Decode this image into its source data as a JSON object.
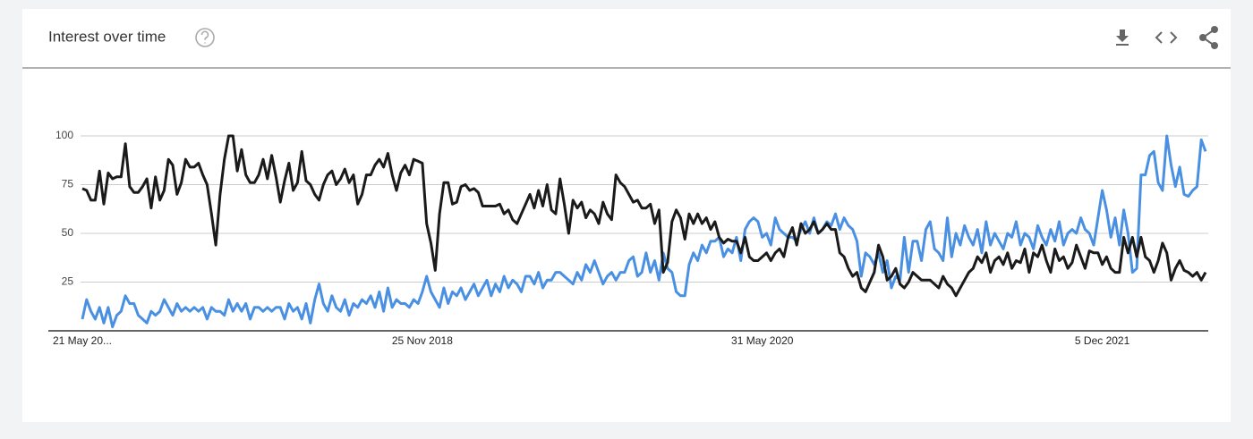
{
  "header": {
    "title": "Interest over time"
  },
  "chart_data": {
    "type": "line",
    "categories": [
      "21 May 20...",
      null,
      null,
      null,
      null,
      null,
      null,
      null,
      null,
      null,
      null,
      null,
      null,
      null,
      null,
      null,
      null,
      null,
      null,
      null,
      null,
      null,
      null,
      null,
      null,
      null,
      null,
      null,
      null,
      null,
      null,
      null,
      null,
      null,
      null,
      null,
      null,
      null,
      null,
      null,
      null,
      null,
      null,
      null,
      null,
      null,
      null,
      null,
      null,
      null,
      null,
      null,
      null,
      null,
      null,
      null,
      null,
      null,
      null,
      null,
      null,
      null,
      null,
      null,
      null,
      null,
      null,
      null,
      null,
      null,
      null,
      null,
      null,
      null,
      null,
      null,
      null,
      null,
      null,
      "25 Nov 2018",
      null,
      null,
      null,
      null,
      null,
      null,
      null,
      null,
      null,
      null,
      null,
      null,
      null,
      null,
      null,
      null,
      null,
      null,
      null,
      null,
      null,
      null,
      null,
      null,
      null,
      null,
      null,
      null,
      null,
      null,
      null,
      null,
      null,
      null,
      null,
      null,
      null,
      null,
      null,
      null,
      null,
      null,
      null,
      null,
      null,
      null,
      null,
      null,
      null,
      null,
      null,
      null,
      null,
      null,
      null,
      null,
      null,
      null,
      null,
      null,
      null,
      null,
      null,
      null,
      null,
      null,
      null,
      null,
      null,
      null,
      null,
      null,
      null,
      null,
      null,
      null,
      null,
      null,
      "31 May 2020",
      null,
      null,
      null,
      null,
      null,
      null,
      null,
      null,
      null,
      null,
      null,
      null,
      null,
      null,
      null,
      null,
      null,
      null,
      null,
      null,
      null,
      null,
      null,
      null,
      null,
      null,
      null,
      null,
      null,
      null,
      null,
      null,
      null,
      null,
      null,
      null,
      null,
      null,
      null,
      null,
      null,
      null,
      null,
      null,
      null,
      null,
      null,
      null,
      null,
      null,
      null,
      null,
      null,
      null,
      null,
      null,
      null,
      null,
      null,
      null,
      null,
      null,
      null,
      null,
      null,
      null,
      null,
      null,
      null,
      null,
      null,
      null,
      null,
      null,
      null,
      null,
      null,
      null,
      "5 Dec 2021",
      null,
      null,
      null,
      null,
      null,
      null,
      null,
      null,
      null,
      null,
      null,
      null,
      null,
      null,
      null,
      null,
      null,
      null,
      null,
      null,
      null,
      null,
      null,
      null
    ],
    "series": [
      {
        "color": "#4a90e2",
        "values": [
          6,
          16,
          10,
          6,
          12,
          4,
          12,
          2,
          8,
          10,
          18,
          14,
          14,
          8,
          6,
          4,
          10,
          8,
          10,
          16,
          12,
          8,
          14,
          10,
          12,
          10,
          12,
          10,
          12,
          6,
          12,
          10,
          10,
          8,
          16,
          10,
          14,
          10,
          14,
          6,
          12,
          12,
          10,
          12,
          10,
          12,
          12,
          6,
          14,
          10,
          12,
          6,
          14,
          4,
          16,
          24,
          14,
          10,
          18,
          12,
          10,
          16,
          8,
          14,
          12,
          16,
          14,
          18,
          12,
          20,
          10,
          22,
          12,
          16,
          14,
          14,
          12,
          16,
          14,
          20,
          28,
          20,
          16,
          12,
          22,
          14,
          20,
          18,
          22,
          16,
          20,
          24,
          18,
          22,
          26,
          18,
          24,
          20,
          28,
          22,
          26,
          24,
          20,
          28,
          28,
          24,
          30,
          22,
          26,
          26,
          30,
          30,
          28,
          26,
          24,
          30,
          26,
          34,
          30,
          36,
          30,
          24,
          28,
          30,
          26,
          30,
          30,
          36,
          38,
          28,
          30,
          40,
          30,
          36,
          26,
          40,
          32,
          30,
          20,
          18,
          18,
          34,
          40,
          36,
          44,
          40,
          46,
          46,
          48,
          38,
          42,
          40,
          48,
          36,
          52,
          56,
          58,
          56,
          48,
          50,
          44,
          58,
          52,
          50,
          48,
          48,
          46,
          52,
          56,
          50,
          58,
          50,
          52,
          56,
          54,
          60,
          52,
          58,
          54,
          52,
          46,
          28,
          40,
          38,
          34,
          40,
          30,
          36,
          22,
          28,
          26,
          48,
          30,
          46,
          46,
          36,
          52,
          56,
          42,
          40,
          36,
          58,
          38,
          50,
          44,
          54,
          48,
          44,
          52,
          40,
          56,
          44,
          50,
          46,
          42,
          50,
          48,
          56,
          44,
          50,
          48,
          42,
          54,
          48,
          44,
          52,
          46,
          56,
          44,
          50,
          52,
          50,
          58,
          52,
          50,
          44,
          58,
          72,
          62,
          48,
          58,
          44,
          62,
          50,
          30,
          32,
          80,
          80,
          90,
          92,
          76,
          72,
          100,
          85,
          74,
          84,
          70,
          69,
          72,
          74,
          98,
          92
        ]
      },
      {
        "color": "#1a1a1a",
        "values": [
          73,
          72,
          67,
          67,
          82,
          65,
          81,
          78,
          79,
          79,
          96,
          74,
          71,
          71,
          74,
          78,
          63,
          79,
          67,
          72,
          88,
          85,
          70,
          76,
          88,
          84,
          84,
          86,
          80,
          75,
          60,
          44,
          70,
          88,
          100,
          100,
          82,
          93,
          80,
          76,
          76,
          80,
          88,
          78,
          90,
          79,
          66,
          77,
          86,
          72,
          76,
          92,
          77,
          75,
          70,
          67,
          75,
          80,
          82,
          75,
          78,
          83,
          76,
          80,
          65,
          70,
          80,
          80,
          85,
          88,
          84,
          91,
          80,
          72,
          81,
          85,
          80,
          88,
          87,
          86,
          55,
          45,
          31,
          60,
          76,
          76,
          65,
          66,
          74,
          75,
          72,
          73,
          71,
          64,
          64,
          64,
          64,
          65,
          60,
          62,
          57,
          55,
          60,
          65,
          70,
          63,
          72,
          64,
          75,
          62,
          60,
          78,
          65,
          50,
          67,
          63,
          66,
          58,
          62,
          60,
          55,
          66,
          60,
          57,
          80,
          76,
          74,
          70,
          66,
          67,
          63,
          63,
          65,
          55,
          62,
          30,
          35,
          56,
          62,
          58,
          47,
          60,
          55,
          60,
          55,
          58,
          52,
          56,
          48,
          45,
          47,
          46,
          46,
          40,
          48,
          38,
          36,
          36,
          38,
          40,
          36,
          40,
          42,
          38,
          48,
          53,
          44,
          55,
          50,
          52,
          56,
          50,
          52,
          55,
          52,
          52,
          40,
          38,
          32,
          28,
          30,
          22,
          20,
          25,
          30,
          44,
          38,
          26,
          28,
          32,
          24,
          22,
          25,
          30,
          28,
          26,
          26,
          26,
          24,
          22,
          28,
          24,
          22,
          18,
          22,
          26,
          30,
          32,
          38,
          35,
          40,
          30,
          36,
          38,
          34,
          40,
          32,
          36,
          35,
          42,
          30,
          40,
          38,
          44,
          36,
          30,
          42,
          36,
          38,
          32,
          35,
          44,
          38,
          32,
          41,
          40,
          40,
          34,
          38,
          32,
          30,
          30,
          48,
          40,
          48,
          38,
          48,
          38,
          36,
          30,
          36,
          45,
          40,
          26,
          32,
          36,
          31,
          30,
          28,
          30,
          26,
          30
        ]
      }
    ],
    "ylim": [
      0,
      100
    ],
    "yticks": [
      25,
      50,
      75,
      100
    ],
    "grid": true
  }
}
